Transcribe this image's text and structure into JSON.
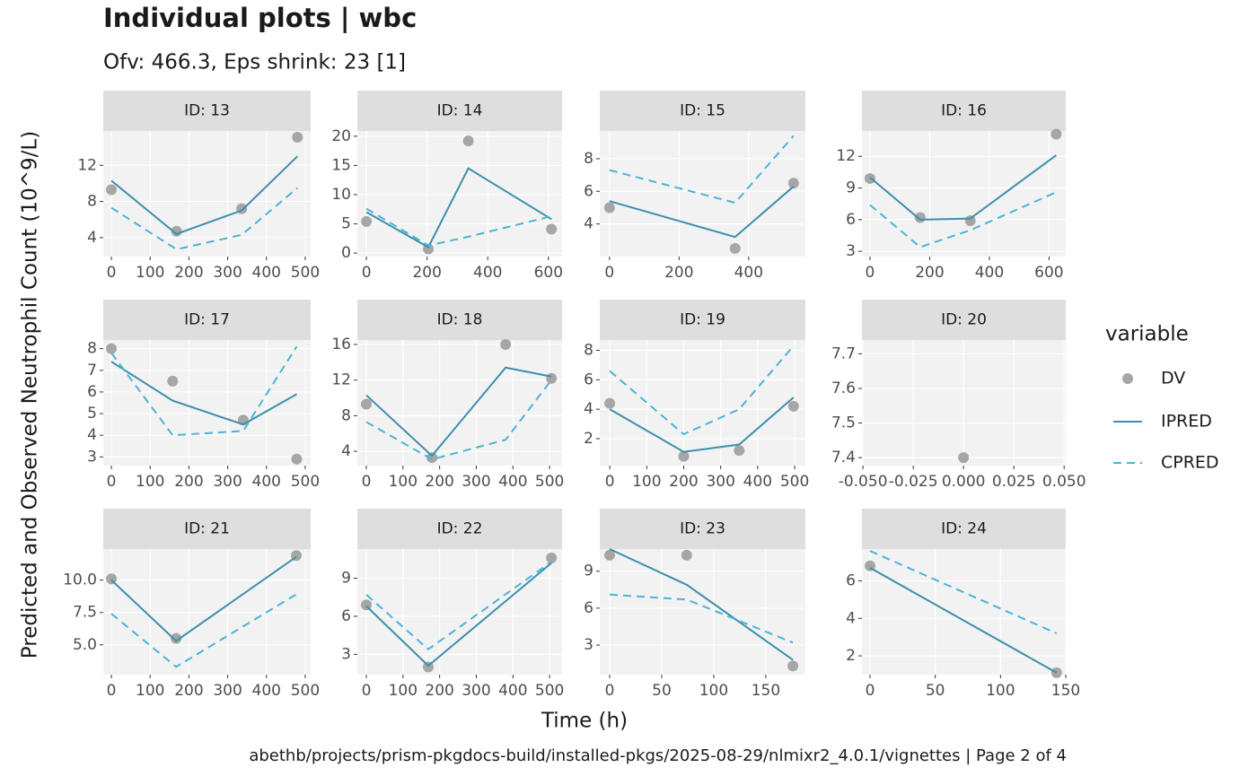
{
  "title": "Individual plots | wbc",
  "subtitle": "Ofv: 466.3, Eps shrink: 23 [1]",
  "x_label": "Time (h)",
  "y_label": "Predicted and Observed Neutrophil Count (10^9/L)",
  "legend_title": "variable",
  "caption": "abethb/projects/prism-pkgdocs-build/installed-pkgs/2025-08-29/nlmixr2_4.0.1/vignettes | Page 2 of 4",
  "chart_data": [
    {
      "type": "line",
      "title": "ID: 13",
      "x": [
        0,
        168,
        336,
        480
      ],
      "xlim": [
        -21,
        514
      ],
      "xticks": [
        0,
        100,
        200,
        300,
        400,
        500
      ],
      "ylim": [
        1.9,
        15.8
      ],
      "yticks": [
        4,
        8,
        12
      ],
      "grid": true,
      "series": [
        {
          "name": "DV",
          "color": "#a6a6a6",
          "style": "points",
          "values": [
            9.3,
            4.7,
            7.2,
            15.1
          ]
        },
        {
          "name": "IPRED",
          "color": "#3d8fab",
          "style": "solid",
          "values": [
            10.3,
            4.4,
            7.0,
            13.0
          ]
        },
        {
          "name": "CPRED",
          "color": "#4db3d6",
          "style": "dashed",
          "values": [
            7.3,
            2.7,
            4.3,
            9.5
          ]
        }
      ]
    },
    {
      "type": "line",
      "title": "ID: 14",
      "x": [
        0,
        204,
        336,
        610
      ],
      "xlim": [
        -30,
        645
      ],
      "xticks": [
        0,
        200,
        400,
        600
      ],
      "ylim": [
        -0.6,
        20.9
      ],
      "yticks": [
        0,
        5,
        10,
        15,
        20
      ],
      "grid": true,
      "series": [
        {
          "name": "DV",
          "color": "#a6a6a6",
          "style": "points",
          "values": [
            5.4,
            0.7,
            19.2,
            4.1
          ]
        },
        {
          "name": "IPRED",
          "color": "#3d8fab",
          "style": "solid",
          "values": [
            7.0,
            1.0,
            14.5,
            5.8
          ]
        },
        {
          "name": "CPRED",
          "color": "#4db3d6",
          "style": "dashed",
          "values": [
            7.6,
            1.3,
            2.8,
            6.3
          ]
        }
      ]
    },
    {
      "type": "line",
      "title": "ID: 15",
      "x": [
        0,
        361,
        529
      ],
      "xlim": [
        -28,
        563
      ],
      "xticks": [
        0,
        200,
        400
      ],
      "ylim": [
        2.0,
        9.7
      ],
      "yticks": [
        4,
        6,
        8
      ],
      "grid": true,
      "series": [
        {
          "name": "DV",
          "color": "#a6a6a6",
          "style": "points",
          "values": [
            5.0,
            2.5,
            6.5
          ]
        },
        {
          "name": "IPRED",
          "color": "#3d8fab",
          "style": "solid",
          "values": [
            5.4,
            3.2,
            6.3
          ]
        },
        {
          "name": "CPRED",
          "color": "#4db3d6",
          "style": "dashed",
          "values": [
            7.3,
            5.3,
            9.4
          ]
        }
      ]
    },
    {
      "type": "line",
      "title": "ID: 16",
      "x": [
        0,
        168,
        336,
        624
      ],
      "xlim": [
        -27,
        656
      ],
      "xticks": [
        0,
        200,
        400,
        600
      ],
      "ylim": [
        2.5,
        14.4
      ],
      "yticks": [
        3,
        6,
        9,
        12
      ],
      "grid": true,
      "series": [
        {
          "name": "DV",
          "color": "#a6a6a6",
          "style": "points",
          "values": [
            9.9,
            6.2,
            5.9,
            14.1
          ]
        },
        {
          "name": "IPRED",
          "color": "#3d8fab",
          "style": "solid",
          "values": [
            10.0,
            6.0,
            6.1,
            12.1
          ]
        },
        {
          "name": "CPRED",
          "color": "#4db3d6",
          "style": "dashed",
          "values": [
            7.4,
            3.4,
            5.0,
            8.6
          ]
        }
      ]
    },
    {
      "type": "line",
      "title": "ID: 17",
      "x": [
        0,
        158,
        340,
        478
      ],
      "xlim": [
        -21,
        514
      ],
      "xticks": [
        0,
        100,
        200,
        300,
        400,
        500
      ],
      "ylim": [
        2.6,
        8.4
      ],
      "yticks": [
        3,
        4,
        5,
        6,
        7,
        8
      ],
      "grid": true,
      "series": [
        {
          "name": "DV",
          "color": "#a6a6a6",
          "style": "points",
          "values": [
            8.0,
            6.5,
            4.7,
            2.9
          ]
        },
        {
          "name": "IPRED",
          "color": "#3d8fab",
          "style": "solid",
          "values": [
            7.4,
            5.6,
            4.5,
            5.9
          ]
        },
        {
          "name": "CPRED",
          "color": "#4db3d6",
          "style": "dashed",
          "values": [
            7.8,
            4.0,
            4.2,
            8.1
          ]
        }
      ]
    },
    {
      "type": "line",
      "title": "ID: 18",
      "x": [
        0,
        179,
        380,
        505
      ],
      "xlim": [
        -24.5,
        534
      ],
      "xticks": [
        0,
        100,
        200,
        300,
        400,
        500
      ],
      "ylim": [
        2.4,
        16.5
      ],
      "yticks": [
        4,
        8,
        12,
        16
      ],
      "grid": true,
      "series": [
        {
          "name": "DV",
          "color": "#a6a6a6",
          "style": "points",
          "values": [
            9.3,
            3.3,
            16.0,
            12.2
          ]
        },
        {
          "name": "IPRED",
          "color": "#3d8fab",
          "style": "solid",
          "values": [
            10.3,
            3.5,
            13.4,
            12.4
          ]
        },
        {
          "name": "CPRED",
          "color": "#4db3d6",
          "style": "dashed",
          "values": [
            7.3,
            3.1,
            5.3,
            12.0
          ]
        }
      ]
    },
    {
      "type": "line",
      "title": "ID: 19",
      "x": [
        0,
        200,
        350,
        497
      ],
      "xlim": [
        -27,
        529
      ],
      "xticks": [
        0,
        100,
        200,
        300,
        400,
        500
      ],
      "ylim": [
        0.17,
        8.7
      ],
      "yticks": [
        2,
        4,
        6,
        8
      ],
      "grid": true,
      "series": [
        {
          "name": "DV",
          "color": "#a6a6a6",
          "style": "points",
          "values": [
            4.4,
            0.8,
            1.2,
            4.2
          ]
        },
        {
          "name": "IPRED",
          "color": "#3d8fab",
          "style": "solid",
          "values": [
            4.0,
            1.1,
            1.6,
            4.8
          ]
        },
        {
          "name": "CPRED",
          "color": "#4db3d6",
          "style": "dashed",
          "values": [
            6.6,
            2.3,
            4.0,
            8.3
          ]
        }
      ]
    },
    {
      "type": "line",
      "title": "ID: 20",
      "x": [
        0
      ],
      "xlim": [
        -0.0505,
        0.0508
      ],
      "xticks": [
        {
          "value": -0.05,
          "label": "-0.050"
        },
        {
          "value": -0.025,
          "label": "-0.025"
        },
        {
          "value": 0,
          "label": "0.000"
        },
        {
          "value": 0.025,
          "label": "0.025"
        },
        {
          "value": 0.05,
          "label": "0.050"
        }
      ],
      "ylim": [
        7.377,
        7.74
      ],
      "yticks": [
        7.4,
        7.5,
        7.6,
        7.7
      ],
      "grid": true,
      "series": [
        {
          "name": "DV",
          "color": "#a6a6a6",
          "style": "points",
          "values": [
            7.4
          ]
        },
        {
          "name": "IPRED",
          "color": "#3d8fab",
          "style": "solid",
          "values": [
            null
          ]
        },
        {
          "name": "CPRED",
          "color": "#4db3d6",
          "style": "dashed",
          "values": [
            null
          ]
        }
      ]
    },
    {
      "type": "line",
      "title": "ID: 21",
      "x": [
        0,
        167,
        477
      ],
      "xlim": [
        -21,
        514
      ],
      "xticks": [
        0,
        100,
        200,
        300,
        400,
        500
      ],
      "ylim": [
        2.7,
        12.4
      ],
      "yticks": [
        {
          "value": 5,
          "label": "5.0"
        },
        {
          "value": 7.5,
          "label": "7.5"
        },
        {
          "value": 10,
          "label": "10.0"
        }
      ],
      "grid": true,
      "series": [
        {
          "name": "DV",
          "color": "#a6a6a6",
          "style": "points",
          "values": [
            10.1,
            5.5,
            11.9
          ]
        },
        {
          "name": "IPRED",
          "color": "#3d8fab",
          "style": "solid",
          "values": [
            10.0,
            5.3,
            11.8
          ]
        },
        {
          "name": "CPRED",
          "color": "#4db3d6",
          "style": "dashed",
          "values": [
            7.4,
            3.3,
            8.9
          ]
        }
      ]
    },
    {
      "type": "line",
      "title": "ID: 22",
      "x": [
        0,
        169,
        505
      ],
      "xlim": [
        -24.5,
        534
      ],
      "xticks": [
        0,
        100,
        200,
        300,
        400,
        500
      ],
      "ylim": [
        1.4,
        11.3
      ],
      "yticks": [
        3,
        6,
        9
      ],
      "grid": true,
      "series": [
        {
          "name": "DV",
          "color": "#a6a6a6",
          "style": "points",
          "values": [
            6.9,
            2.0,
            10.6
          ]
        },
        {
          "name": "IPRED",
          "color": "#3d8fab",
          "style": "solid",
          "values": [
            6.8,
            2.1,
            10.2
          ]
        },
        {
          "name": "CPRED",
          "color": "#4db3d6",
          "style": "dashed",
          "values": [
            7.7,
            3.4,
            10.3
          ]
        }
      ]
    },
    {
      "type": "line",
      "title": "ID: 23",
      "x": [
        0,
        74,
        176
      ],
      "xlim": [
        -9.5,
        188
      ],
      "xticks": [
        0,
        50,
        100,
        150
      ],
      "ylim": [
        0.6,
        10.8
      ],
      "yticks": [
        3,
        6,
        9
      ],
      "grid": true,
      "series": [
        {
          "name": "DV",
          "color": "#a6a6a6",
          "style": "points",
          "values": [
            10.3,
            10.3,
            1.3
          ]
        },
        {
          "name": "IPRED",
          "color": "#3d8fab",
          "style": "solid",
          "values": [
            10.8,
            7.9,
            1.8
          ]
        },
        {
          "name": "CPRED",
          "color": "#4db3d6",
          "style": "dashed",
          "values": [
            7.1,
            6.7,
            3.2
          ]
        }
      ]
    },
    {
      "type": "line",
      "title": "ID: 24",
      "x": [
        0,
        143
      ],
      "xlim": [
        -6.2,
        150
      ],
      "xticks": [
        0,
        50,
        100,
        150
      ],
      "ylim": [
        1.0,
        7.7
      ],
      "yticks": [
        2,
        4,
        6
      ],
      "grid": true,
      "series": [
        {
          "name": "DV",
          "color": "#a6a6a6",
          "style": "points",
          "values": [
            6.8,
            1.1
          ]
        },
        {
          "name": "IPRED",
          "color": "#3d8fab",
          "style": "solid",
          "values": [
            6.7,
            1.1
          ]
        },
        {
          "name": "CPRED",
          "color": "#4db3d6",
          "style": "dashed",
          "values": [
            7.6,
            3.2
          ]
        }
      ]
    }
  ]
}
